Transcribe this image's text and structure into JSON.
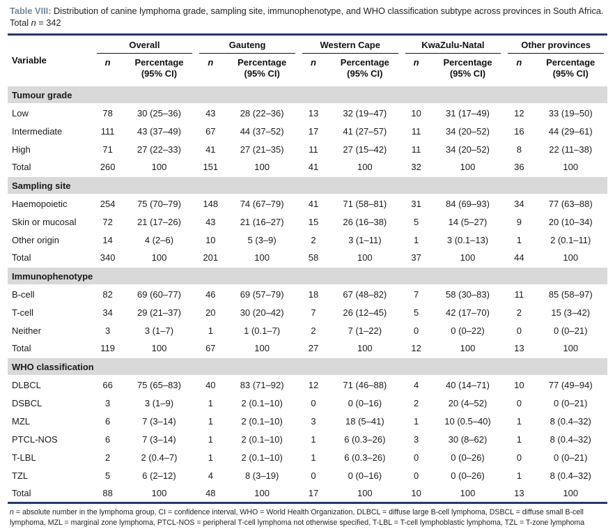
{
  "colors": {
    "accent_title": "#76889b",
    "rule_dark": "#263a66",
    "section_band": "#d9d9d9"
  },
  "title": {
    "tag": "Table VIII:",
    "text": " Distribution of canine lymphoma grade, sampling site, immunophenotype, and WHO classification subtype across provinces in South Africa. Total ",
    "total_var": "n",
    "total_value": " = 342"
  },
  "columns": {
    "variable": "Variable",
    "groups": [
      {
        "name": "Overall"
      },
      {
        "name": "Gauteng"
      },
      {
        "name": "Western Cape"
      },
      {
        "name": "KwaZulu-Natal"
      },
      {
        "name": "Other provinces"
      }
    ],
    "sub_n": "n",
    "sub_pct_line1": "Percentage",
    "sub_pct_line2": "(95% CI)"
  },
  "sections": [
    {
      "header": "Tumour grade",
      "rows": [
        {
          "label": "Low",
          "cells": [
            "78",
            "30 (25–36)",
            "43",
            "28 (22–36)",
            "13",
            "32 (19–47)",
            "10",
            "31 (17–49)",
            "12",
            "33 (19–50)"
          ]
        },
        {
          "label": "Intermediate",
          "cells": [
            "111",
            "43 (37–49)",
            "67",
            "44 (37–52)",
            "17",
            "41 (27–57)",
            "11",
            "34 (20–52)",
            "16",
            "44 (29–61)"
          ]
        },
        {
          "label": "High",
          "cells": [
            "71",
            "27 (22–33)",
            "41",
            "27 (21–35)",
            "11",
            "27 (15–42)",
            "11",
            "34 (20–52)",
            "8",
            "22 (11–38)"
          ]
        },
        {
          "label": "Total",
          "cells": [
            "260",
            "100",
            "151",
            "100",
            "41",
            "100",
            "32",
            "100",
            "36",
            "100"
          ]
        }
      ]
    },
    {
      "header": "Sampling site",
      "rows": [
        {
          "label": "Haemopoietic",
          "cells": [
            "254",
            "75 (70–79)",
            "148",
            "74 (67–79)",
            "41",
            "71 (58–81)",
            "31",
            "84 (69–93)",
            "34",
            "77 (63–88)"
          ]
        },
        {
          "label": "Skin or mucosal",
          "cells": [
            "72",
            "21 (17–26)",
            "43",
            "21 (16–27)",
            "15",
            "26 (16–38)",
            "5",
            "14 (5–27)",
            "9",
            "20 (10–34)"
          ]
        },
        {
          "label": "Other origin",
          "cells": [
            "14",
            "4 (2–6)",
            "10",
            "5 (3–9)",
            "2",
            "3 (1–11)",
            "1",
            "3 (0.1–13)",
            "1",
            "2 (0.1–11)"
          ]
        },
        {
          "label": "Total",
          "cells": [
            "340",
            "100",
            "201",
            "100",
            "58",
            "100",
            "37",
            "100",
            "44",
            "100"
          ]
        }
      ]
    },
    {
      "header": "Immunophenotype",
      "rows": [
        {
          "label": "B-cell",
          "cells": [
            "82",
            "69 (60–77)",
            "46",
            "69 (57–79)",
            "18",
            "67 (48–82)",
            "7",
            "58 (30–83)",
            "11",
            "85 (58–97)"
          ]
        },
        {
          "label": "T-cell",
          "cells": [
            "34",
            "29 (21–37)",
            "20",
            "30 (20–42)",
            "7",
            "26 (12–45)",
            "5",
            "42 (17–70)",
            "2",
            "15 (3–42)"
          ]
        },
        {
          "label": "Neither",
          "cells": [
            "3",
            "3 (1–7)",
            "1",
            "1 (0.1–7)",
            "2",
            "7 (1–22)",
            "0",
            "0 (0–22)",
            "0",
            "0 (0–21)"
          ]
        },
        {
          "label": "Total",
          "cells": [
            "119",
            "100",
            "67",
            "100",
            "27",
            "100",
            "12",
            "100",
            "13",
            "100"
          ]
        }
      ]
    },
    {
      "header": "WHO classification",
      "rows": [
        {
          "label": "DLBCL",
          "cells": [
            "66",
            "75 (65–83)",
            "40",
            "83 (71–92)",
            "12",
            "71 (46–88)",
            "4",
            "40 (14–71)",
            "10",
            "77 (49–94)"
          ]
        },
        {
          "label": "DSBCL",
          "cells": [
            "3",
            "3 (1–9)",
            "1",
            "2 (0.1–10)",
            "0",
            "0 (0–16)",
            "2",
            "20 (4–52)",
            "0",
            "0 (0–21)"
          ]
        },
        {
          "label": "MZL",
          "cells": [
            "6",
            "7 (3–14)",
            "1",
            "2 (0.1–10)",
            "3",
            "18 (5–41)",
            "1",
            "10 (0.5–40)",
            "1",
            "8 (0.4–32)"
          ]
        },
        {
          "label": "PTCL-NOS",
          "cells": [
            "6",
            "7 (3–14)",
            "1",
            "2 (0.1–10)",
            "1",
            "6 (0.3–26)",
            "3",
            "30 (8–62)",
            "1",
            "8 (0.4–32)"
          ]
        },
        {
          "label": "T-LBL",
          "cells": [
            "2",
            "2 (0.4–7)",
            "1",
            "2 (0.1–10)",
            "1",
            "6 (0.3–26)",
            "0",
            "0 (0–26)",
            "0",
            "0 (0–21)"
          ]
        },
        {
          "label": "TZL",
          "cells": [
            "5",
            "6 (2–12)",
            "4",
            "8 (3–19)",
            "0",
            "0 (0–16)",
            "0",
            "0 (0–26)",
            "1",
            "8 (0.4–32)"
          ]
        },
        {
          "label": "Total",
          "cells": [
            "88",
            "100",
            "48",
            "100",
            "17",
            "100",
            "10",
            "100",
            "13",
            "100"
          ]
        }
      ]
    }
  ],
  "footnote": {
    "var": "n",
    "text": " = absolute number in the lymphoma group, CI = confidence interval, WHO = World Health Organization, DLBCL = diffuse large B-cell lymphoma, DSBCL = diffuse small B-cell lymphoma, MZL = marginal zone lymphoma, PTCL-NOS = peripheral T-cell lymphoma not otherwise specified, T-LBL = T-cell lymphoblastic lymphoma, TZL = T-zone lymphoma"
  }
}
